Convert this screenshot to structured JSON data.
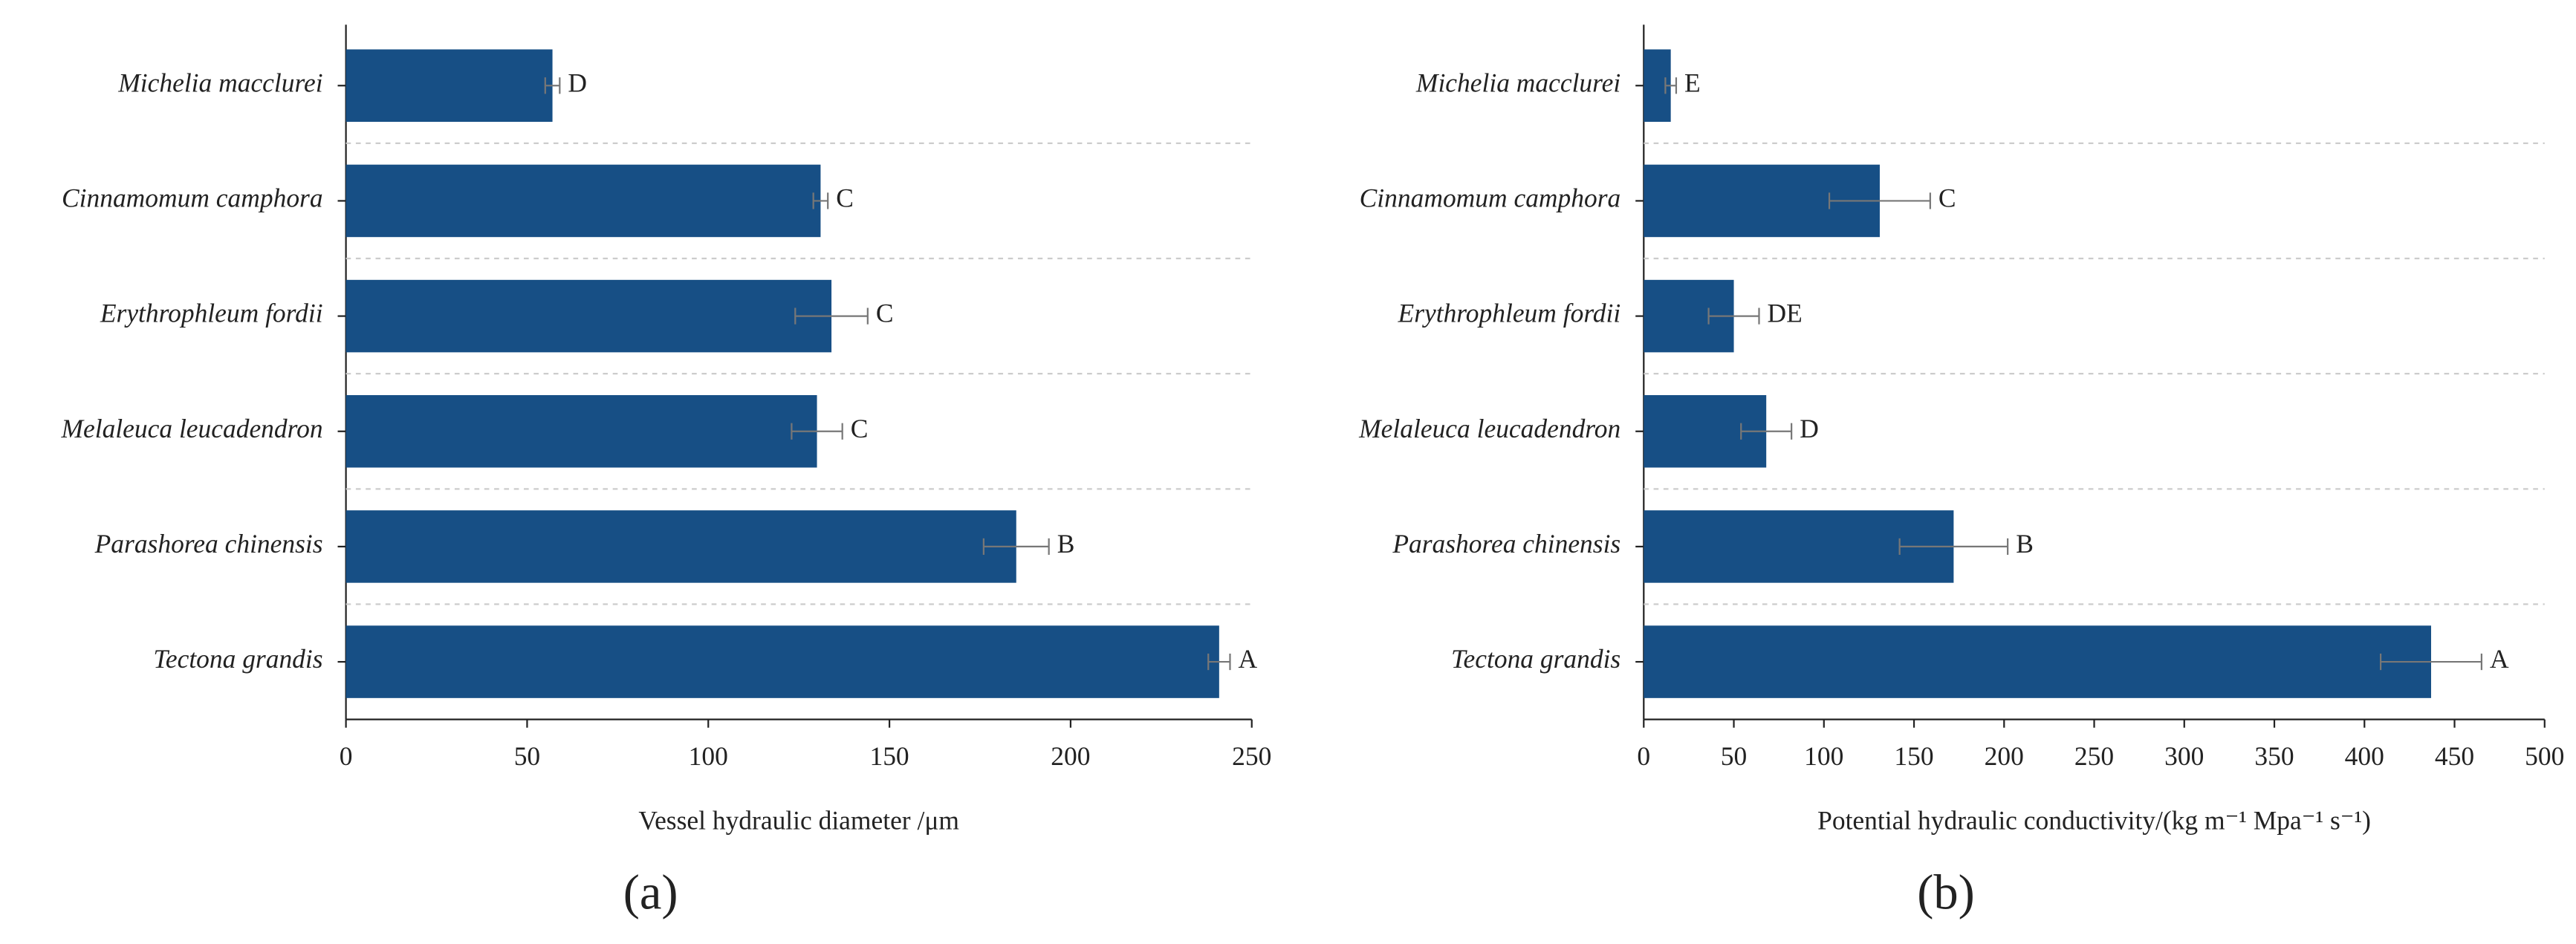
{
  "chart_data": [
    {
      "type": "bar",
      "orientation": "horizontal",
      "panel_label": "(a)",
      "xlabel": "Vessel hydraulic diameter /μm",
      "categories": [
        "Michelia macclurei",
        "Cinnamomum camphora",
        "Erythrophleum fordii",
        "Melaleuca leucadendron",
        "Parashorea chinensis",
        "Tectona grandis"
      ],
      "values": [
        57,
        131,
        134,
        130,
        185,
        241
      ],
      "errors": [
        2,
        2,
        10,
        7,
        9,
        3
      ],
      "value_labels": [
        "D",
        "C",
        "C",
        "C",
        "B",
        "A"
      ],
      "color": "#174f85",
      "error_color": "#777777",
      "xlim": [
        0,
        250
      ],
      "xticks": [
        0,
        50,
        100,
        150,
        200,
        250
      ],
      "category_dividers": true
    },
    {
      "type": "bar",
      "orientation": "horizontal",
      "panel_label": "(b)",
      "xlabel": "Potential hydraulic conductivity/(kg m⁻¹ Mpa⁻¹ s⁻¹)",
      "categories": [
        "Michelia macclurei",
        "Cinnamomum camphora",
        "Erythrophleum fordii",
        "Melaleuca leucadendron",
        "Parashorea chinensis",
        "Tectona grandis"
      ],
      "values": [
        15,
        131,
        50,
        68,
        172,
        437
      ],
      "errors": [
        3,
        28,
        14,
        14,
        30,
        28
      ],
      "value_labels": [
        "E",
        "C",
        "DE",
        "D",
        "B",
        "A"
      ],
      "color": "#174f85",
      "error_color": "#777777",
      "xlim": [
        0,
        500
      ],
      "xticks": [
        0,
        50,
        100,
        150,
        200,
        250,
        300,
        350,
        400,
        450,
        500
      ],
      "category_dividers": true
    }
  ]
}
